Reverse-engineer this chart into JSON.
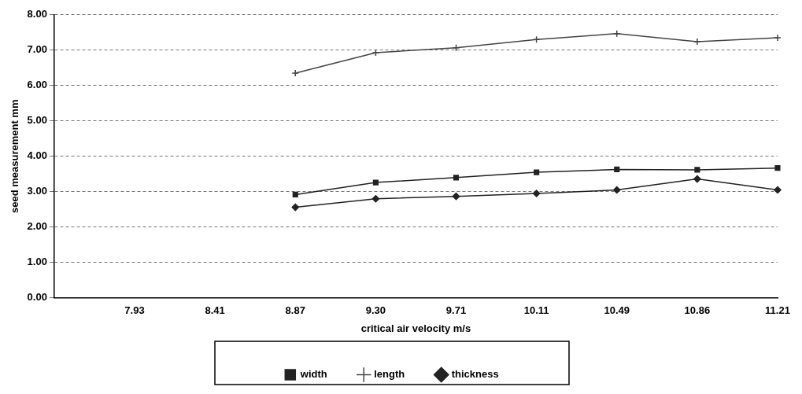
{
  "chart_data": {
    "type": "line",
    "xlabel": "critical air velocity m/s",
    "ylabel": "seed measurement mm",
    "categories": [
      null,
      "7.93",
      "8.41",
      "8.87",
      "9.30",
      "9.71",
      "10.11",
      "10.49",
      "10.86",
      "11.21"
    ],
    "series": [
      {
        "name": "width",
        "color": "#222222",
        "marker": "square",
        "values": [
          null,
          null,
          null,
          2.92,
          3.26,
          3.4,
          3.55,
          3.63,
          3.62,
          3.67
        ]
      },
      {
        "name": "length",
        "color": "#444444",
        "marker": "cross",
        "values": [
          null,
          null,
          null,
          6.35,
          6.93,
          7.07,
          7.3,
          7.47,
          7.24,
          7.35
        ]
      },
      {
        "name": "thickness",
        "color": "#222222",
        "marker": "diamond",
        "values": [
          null,
          null,
          null,
          2.56,
          2.8,
          2.87,
          2.95,
          3.05,
          3.36,
          3.05
        ]
      }
    ],
    "ylim": [
      0,
      8
    ],
    "yticks": [
      {
        "value": 0,
        "label": "0.00"
      },
      {
        "value": 1,
        "label": "1.00"
      },
      {
        "value": 2,
        "label": "2.00"
      },
      {
        "value": 3,
        "label": "3.00"
      },
      {
        "value": 4,
        "label": "4.00"
      },
      {
        "value": 5,
        "label": "5.00"
      },
      {
        "value": 6,
        "label": "6.00"
      },
      {
        "value": 7,
        "label": "7.00"
      },
      {
        "value": 8,
        "label": "8.00"
      }
    ],
    "grid": "y",
    "legend": "bottom",
    "line_style": "solid"
  }
}
